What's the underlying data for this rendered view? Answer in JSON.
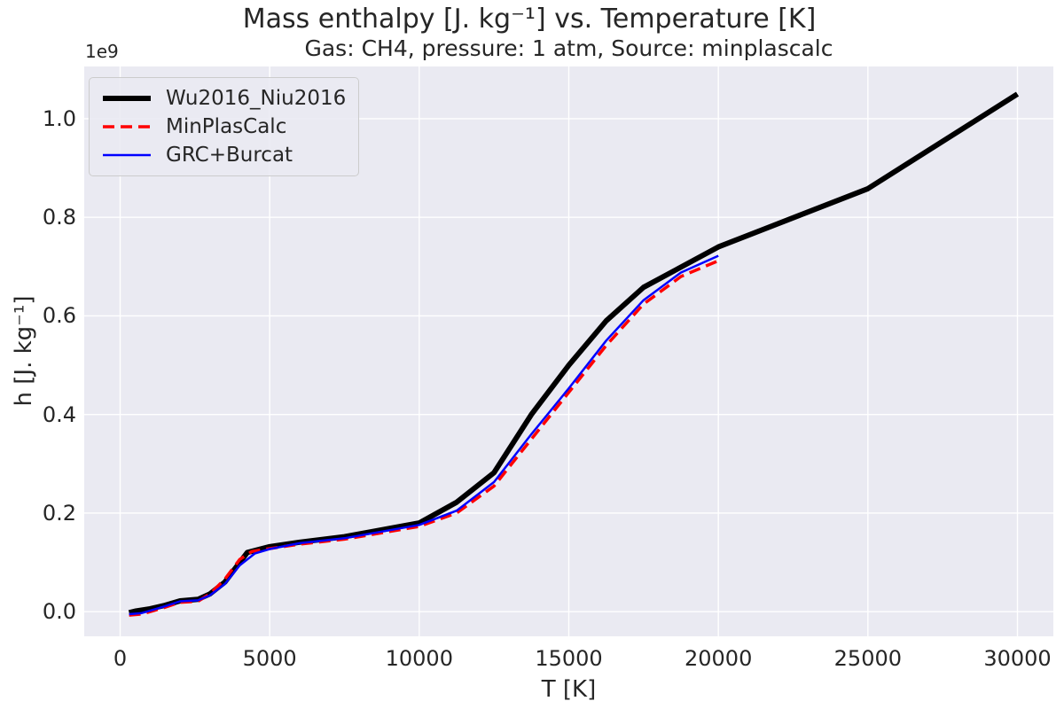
{
  "chart_data": {
    "type": "line",
    "title": "Mass enthalpy [J. kg⁻¹] vs. Temperature [K]",
    "subtitle": "Gas: CH4, pressure: 1 atm, Source: minplascalc",
    "xlabel": "T [K]",
    "ylabel": "h [J. kg⁻¹]",
    "y_offset_text": "1e9",
    "grid": true,
    "legend_position": "upper left",
    "background_color": "#eaeaf2",
    "gridline_color": "#ffffff",
    "text_color": "#262626",
    "xlim": [
      -1200,
      31200
    ],
    "ylim": [
      -50000000.0,
      1106000000.0
    ],
    "x_ticks": [
      0,
      5000,
      10000,
      15000,
      20000,
      25000,
      30000
    ],
    "x_tick_labels": [
      "0",
      "5000",
      "10000",
      "15000",
      "20000",
      "25000",
      "30000"
    ],
    "y_ticks": [
      0,
      200000000.0,
      400000000.0,
      600000000.0,
      800000000.0,
      1000000000.0
    ],
    "y_tick_labels": [
      "0.0",
      "0.2",
      "0.4",
      "0.6",
      "0.8",
      "1.0"
    ],
    "series": [
      {
        "name": "Wu2016_Niu2016",
        "color": "#000000",
        "style": "solid",
        "width": 6,
        "dash": null,
        "x": [
          300,
          500,
          1000,
          1500,
          2000,
          2600,
          3000,
          3500,
          4000,
          4250,
          5000,
          6000,
          7500,
          10000,
          11250,
          12500,
          13750,
          15000,
          16250,
          17500,
          20000,
          25000,
          30000
        ],
        "y": [
          -2000000.0,
          1000000.0,
          6000000.0,
          13000000.0,
          22000000.0,
          25000000.0,
          36000000.0,
          60000000.0,
          100000000.0,
          120000000.0,
          132000000.0,
          141000000.0,
          152000000.0,
          180000000.0,
          222000000.0,
          282000000.0,
          400000000.0,
          500000000.0,
          590000000.0,
          658000000.0,
          740000000.0,
          858000000.0,
          1050000000.0
        ]
      },
      {
        "name": "MinPlasCalc",
        "color": "#ff0000",
        "style": "dashed",
        "width": 3.5,
        "dash": "13 7",
        "x": [
          300,
          700,
          1000,
          1500,
          2000,
          2600,
          3000,
          3500,
          4000,
          4400,
          5000,
          6000,
          7500,
          10000,
          11250,
          12500,
          13750,
          15000,
          16250,
          17500,
          18750,
          20000
        ],
        "y": [
          -7000000.0,
          -5000000.0,
          0,
          9000000.0,
          19000000.0,
          21000000.0,
          36000000.0,
          66000000.0,
          106000000.0,
          122000000.0,
          128000000.0,
          137000000.0,
          147000000.0,
          173000000.0,
          200000000.0,
          255000000.0,
          350000000.0,
          445000000.0,
          540000000.0,
          624000000.0,
          680000000.0,
          712000000.0
        ]
      },
      {
        "name": "GRC+Burcat",
        "color": "#0000ff",
        "style": "solid",
        "width": 2.5,
        "dash": null,
        "x": [
          300,
          700,
          1000,
          1500,
          2000,
          2600,
          3000,
          3500,
          4000,
          4500,
          5000,
          6000,
          7500,
          10000,
          11250,
          12500,
          13750,
          15000,
          16250,
          17500,
          18750,
          20000
        ],
        "y": [
          -5000000.0,
          -3000000.0,
          2000000.0,
          11000000.0,
          21000000.0,
          23000000.0,
          33000000.0,
          56000000.0,
          94000000.0,
          118000000.0,
          127000000.0,
          139000000.0,
          149000000.0,
          176000000.0,
          205000000.0,
          263000000.0,
          360000000.0,
          453000000.0,
          550000000.0,
          632000000.0,
          688000000.0,
          722000000.0
        ]
      }
    ]
  }
}
